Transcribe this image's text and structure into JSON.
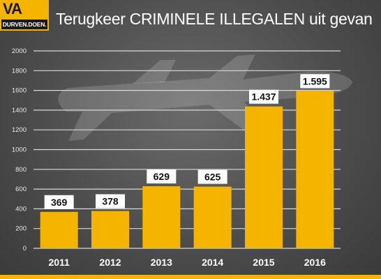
{
  "header": {
    "logo_mark": "VA",
    "logo_tagline": "DURVEN.DOEN.",
    "title": "Terugkeer CRIMINELE ILLEGALEN uit gevan"
  },
  "chart_data": {
    "type": "bar",
    "title": "Terugkeer CRIMINELE ILLEGALEN uit gevan",
    "xlabel": "",
    "ylabel": "",
    "categories": [
      "2011",
      "2012",
      "2013",
      "2014",
      "2015",
      "2016"
    ],
    "values": [
      369,
      378,
      629,
      625,
      1437,
      1595
    ],
    "value_labels": [
      "369",
      "378",
      "629",
      "625",
      "1.437",
      "1.595"
    ],
    "ylim": [
      0,
      2000
    ],
    "yticks": [
      "0",
      "200",
      "400",
      "600",
      "800",
      "1000",
      "1200",
      "1400",
      "1600",
      "1800",
      "2000"
    ],
    "grid": true,
    "colors": {
      "bar": "#f5b400",
      "grid": "#d9d9d9",
      "label_bg": "#ffffff",
      "label_text": "#111111"
    }
  }
}
